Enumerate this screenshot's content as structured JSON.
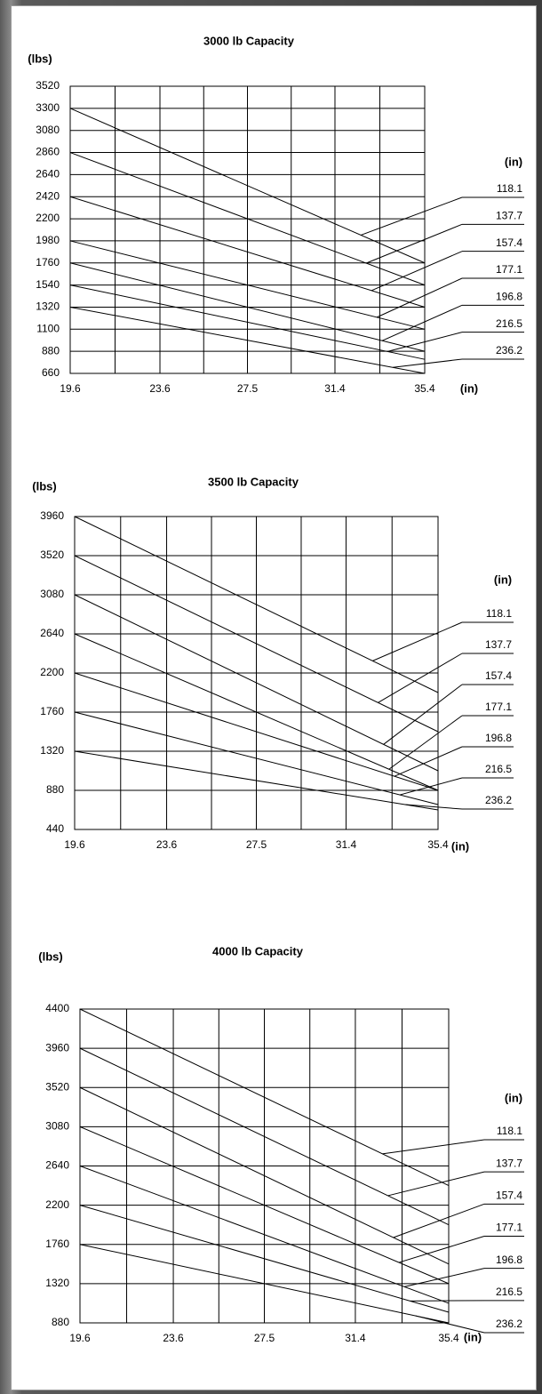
{
  "chart_data": [
    {
      "type": "line",
      "title": "3000 lb Capacity",
      "y_label": "(lbs)",
      "x_label": "(in)",
      "legend_title": "(in)",
      "x": [
        19.6,
        35.4
      ],
      "xlim": [
        19.6,
        35.4
      ],
      "xticks": [
        19.6,
        23.6,
        27.5,
        31.4,
        35.4
      ],
      "ylim": [
        660,
        3520
      ],
      "yticks": [
        660,
        880,
        1100,
        1320,
        1540,
        1760,
        1980,
        2200,
        2420,
        2640,
        2860,
        3080,
        3300,
        3520
      ],
      "grid": true,
      "minor_x_grid": true,
      "series": [
        {
          "name": "118.1",
          "color": "#000000",
          "values": [
            3300,
            1760
          ]
        },
        {
          "name": "137.7",
          "color": "#000000",
          "values": [
            2860,
            1540
          ]
        },
        {
          "name": "157.4",
          "color": "#000000",
          "values": [
            2420,
            1320
          ]
        },
        {
          "name": "177.1",
          "color": "#000000",
          "values": [
            1980,
            1100
          ]
        },
        {
          "name": "196.8",
          "color": "#000000",
          "values": [
            1760,
            880
          ]
        },
        {
          "name": "216.5",
          "color": "#000000",
          "values": [
            1540,
            800
          ]
        },
        {
          "name": "236.2",
          "color": "#000000",
          "values": [
            1320,
            660
          ]
        }
      ]
    },
    {
      "type": "line",
      "title": "3500 lb Capacity",
      "y_label": "(lbs)",
      "x_label": "(in)",
      "legend_title": "(in)",
      "x": [
        19.6,
        35.4
      ],
      "xlim": [
        19.6,
        35.4
      ],
      "xticks": [
        19.6,
        23.6,
        27.5,
        31.4,
        35.4
      ],
      "ylim": [
        440,
        3960
      ],
      "yticks": [
        440,
        880,
        1320,
        1760,
        2200,
        2640,
        3080,
        3520,
        3960
      ],
      "grid": true,
      "minor_x_grid": true,
      "series": [
        {
          "name": "118.1",
          "color": "#000000",
          "values": [
            3960,
            1980
          ]
        },
        {
          "name": "137.7",
          "color": "#000000",
          "values": [
            3520,
            1540
          ]
        },
        {
          "name": "157.4",
          "color": "#000000",
          "values": [
            3080,
            1100
          ]
        },
        {
          "name": "177.1",
          "color": "#000000",
          "values": [
            2640,
            880
          ]
        },
        {
          "name": "196.8",
          "color": "#000000",
          "values": [
            2200,
            880
          ]
        },
        {
          "name": "216.5",
          "color": "#000000",
          "values": [
            1760,
            720
          ]
        },
        {
          "name": "236.2",
          "color": "#000000",
          "values": [
            1320,
            660
          ]
        }
      ]
    },
    {
      "type": "line",
      "title": "4000 lb Capacity",
      "y_label": "(lbs)",
      "x_label": "(in)",
      "legend_title": "(in)",
      "x": [
        19.6,
        35.4
      ],
      "xlim": [
        19.6,
        35.4
      ],
      "xticks": [
        19.6,
        23.6,
        27.5,
        31.4,
        35.4
      ],
      "ylim": [
        880,
        4400
      ],
      "yticks": [
        880,
        1320,
        1760,
        2200,
        2640,
        3080,
        3520,
        3960,
        4400
      ],
      "grid": true,
      "minor_x_grid": true,
      "series": [
        {
          "name": "118.1",
          "color": "#000000",
          "values": [
            4400,
            2420
          ]
        },
        {
          "name": "137.7",
          "color": "#000000",
          "values": [
            3960,
            1980
          ]
        },
        {
          "name": "157.4",
          "color": "#000000",
          "values": [
            3520,
            1540
          ]
        },
        {
          "name": "177.1",
          "color": "#000000",
          "values": [
            3080,
            1320
          ]
        },
        {
          "name": "196.8",
          "color": "#000000",
          "values": [
            2640,
            1100
          ]
        },
        {
          "name": "216.5",
          "color": "#000000",
          "values": [
            2200,
            1000
          ]
        },
        {
          "name": "236.2",
          "color": "#000000",
          "values": [
            1760,
            880
          ]
        }
      ]
    }
  ]
}
